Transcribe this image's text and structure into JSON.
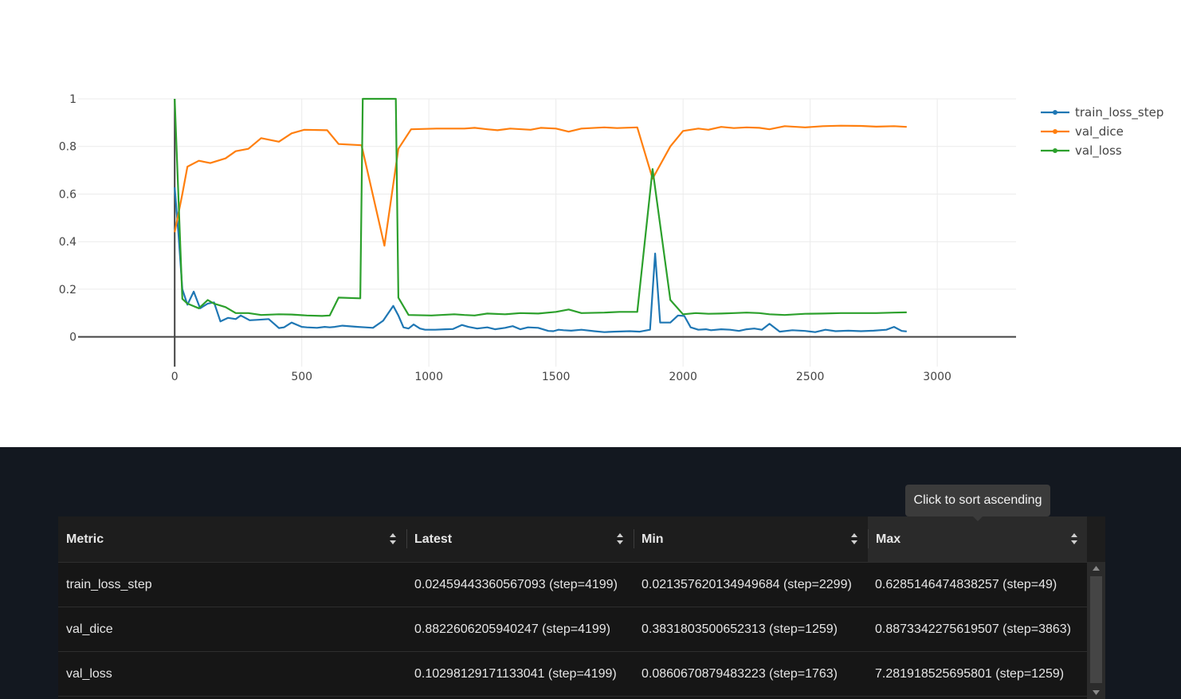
{
  "chart_data": {
    "type": "line",
    "title": "",
    "xlabel": "",
    "ylabel": "",
    "xlim": [
      -380,
      3310
    ],
    "ylim": [
      -0.125,
      1.0
    ],
    "x_ticks": [
      0,
      500,
      1000,
      1500,
      2000,
      2500,
      3000
    ],
    "y_ticks": [
      0,
      0.2,
      0.4,
      0.6,
      0.8,
      1
    ],
    "grid": true,
    "legend_position": "top-right",
    "series": [
      {
        "name": "train_loss_step",
        "color": "#1f77b4",
        "x": [
          0,
          15,
          30,
          50,
          75,
          100,
          130,
          155,
          180,
          210,
          240,
          260,
          295,
          330,
          370,
          410,
          430,
          460,
          500,
          520,
          560,
          590,
          610,
          630,
          660,
          720,
          750,
          780,
          820,
          860,
          880,
          900,
          920,
          940,
          965,
          985,
          1025,
          1065,
          1095,
          1130,
          1155,
          1190,
          1230,
          1260,
          1300,
          1330,
          1360,
          1390,
          1430,
          1470,
          1490,
          1510,
          1530,
          1560,
          1600,
          1650,
          1690,
          1730,
          1790,
          1830,
          1870,
          1890,
          1910,
          1950,
          1980,
          2005,
          2030,
          2060,
          2090,
          2110,
          2150,
          2185,
          2220,
          2250,
          2280,
          2310,
          2340,
          2380,
          2430,
          2480,
          2520,
          2560,
          2600,
          2650,
          2700,
          2750,
          2800,
          2830,
          2860,
          2880
        ],
        "y": [
          0.628,
          0.43,
          0.2,
          0.135,
          0.19,
          0.12,
          0.14,
          0.145,
          0.065,
          0.08,
          0.075,
          0.09,
          0.07,
          0.072,
          0.075,
          0.037,
          0.04,
          0.06,
          0.042,
          0.04,
          0.038,
          0.042,
          0.04,
          0.042,
          0.047,
          0.042,
          0.04,
          0.038,
          0.068,
          0.13,
          0.09,
          0.04,
          0.035,
          0.052,
          0.035,
          0.03,
          0.03,
          0.032,
          0.033,
          0.05,
          0.042,
          0.035,
          0.04,
          0.032,
          0.038,
          0.045,
          0.032,
          0.04,
          0.038,
          0.025,
          0.024,
          0.03,
          0.028,
          0.026,
          0.03,
          0.024,
          0.02,
          0.022,
          0.024,
          0.022,
          0.03,
          0.35,
          0.06,
          0.06,
          0.09,
          0.088,
          0.04,
          0.03,
          0.032,
          0.028,
          0.032,
          0.03,
          0.025,
          0.032,
          0.035,
          0.03,
          0.055,
          0.022,
          0.028,
          0.025,
          0.02,
          0.03,
          0.024,
          0.026,
          0.024,
          0.026,
          0.03,
          0.042,
          0.025,
          0.023
        ]
      },
      {
        "name": "val_dice",
        "color": "#ff7f0e",
        "x": [
          0,
          30,
          50,
          95,
          140,
          200,
          240,
          290,
          340,
          410,
          460,
          510,
          600,
          645,
          735,
          825,
          880,
          930,
          1030,
          1140,
          1180,
          1230,
          1270,
          1320,
          1400,
          1440,
          1500,
          1550,
          1600,
          1690,
          1740,
          1820,
          1880,
          1950,
          2000,
          2060,
          2100,
          2150,
          2200,
          2250,
          2300,
          2340,
          2400,
          2480,
          2550,
          2620,
          2700,
          2760,
          2830,
          2880
        ],
        "y": [
          0.44,
          0.6,
          0.715,
          0.74,
          0.73,
          0.75,
          0.78,
          0.79,
          0.835,
          0.82,
          0.855,
          0.87,
          0.868,
          0.81,
          0.805,
          0.383,
          0.79,
          0.872,
          0.875,
          0.875,
          0.878,
          0.872,
          0.868,
          0.875,
          0.87,
          0.878,
          0.875,
          0.862,
          0.875,
          0.88,
          0.877,
          0.88,
          0.665,
          0.8,
          0.865,
          0.875,
          0.87,
          0.882,
          0.877,
          0.88,
          0.878,
          0.872,
          0.885,
          0.88,
          0.885,
          0.887,
          0.886,
          0.883,
          0.885,
          0.882
        ]
      },
      {
        "name": "val_loss",
        "color": "#2ca02c",
        "x": [
          0,
          30,
          50,
          95,
          130,
          155,
          200,
          240,
          290,
          340,
          410,
          460,
          520,
          580,
          610,
          645,
          730,
          740,
          870,
          880,
          920,
          1010,
          1100,
          1140,
          1180,
          1230,
          1300,
          1360,
          1430,
          1500,
          1550,
          1600,
          1690,
          1750,
          1820,
          1880,
          1950,
          2000,
          2050,
          2100,
          2150,
          2200,
          2250,
          2300,
          2340,
          2400,
          2480,
          2550,
          2620,
          2700,
          2760,
          2830,
          2880
        ],
        "y": [
          1.0,
          0.16,
          0.14,
          0.12,
          0.155,
          0.14,
          0.125,
          0.1,
          0.1,
          0.092,
          0.095,
          0.094,
          0.09,
          0.088,
          0.09,
          0.165,
          0.162,
          1.0,
          1.0,
          0.165,
          0.092,
          0.09,
          0.095,
          0.092,
          0.09,
          0.098,
          0.095,
          0.1,
          0.098,
          0.105,
          0.115,
          0.1,
          0.102,
          0.105,
          0.105,
          0.705,
          0.155,
          0.095,
          0.1,
          0.097,
          0.098,
          0.1,
          0.102,
          0.1,
          0.095,
          0.092,
          0.097,
          0.098,
          0.1,
          0.1,
          0.1,
          0.102,
          0.103
        ]
      }
    ]
  },
  "table": {
    "columns": [
      {
        "key": "metric",
        "label": "Metric"
      },
      {
        "key": "latest",
        "label": "Latest"
      },
      {
        "key": "min",
        "label": "Min"
      },
      {
        "key": "max",
        "label": "Max"
      }
    ],
    "rows": [
      {
        "metric": "train_loss_step",
        "latest": "0.02459443360567093 (step=4199)",
        "min": "0.021357620134949684 (step=2299)",
        "max": "0.6285146474838257 (step=49)"
      },
      {
        "metric": "val_dice",
        "latest": "0.8822606205940247 (step=4199)",
        "min": "0.3831803500652313 (step=1259)",
        "max": "0.8873342275619507 (step=3863)"
      },
      {
        "metric": "val_loss",
        "latest": "0.10298129171133041 (step=4199)",
        "min": "0.0860670879483223 (step=1763)",
        "max": "7.281918525695801 (step=1259)"
      }
    ]
  },
  "tooltip": {
    "text": "Click to sort ascending"
  },
  "icons": {
    "sort": "sort-icon",
    "scroll_up": "scroll-up-arrow-icon",
    "scroll_down": "scroll-down-arrow-icon"
  }
}
